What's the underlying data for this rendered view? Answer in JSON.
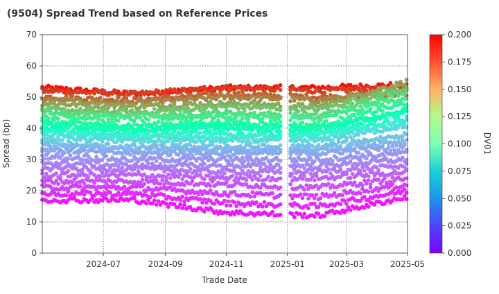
{
  "chart_data": {
    "type": "scatter",
    "title": "(9504)   Spread Trend based on Reference Prices",
    "xlabel": "Trade Date",
    "ylabel": "Spread (bp)",
    "colorbar_label": "DV01",
    "xlim": [
      "2024-05-01",
      "2025-05-01"
    ],
    "ylim": [
      0,
      70
    ],
    "grid": true,
    "x_ticks": [
      "2024-07",
      "2024-09",
      "2024-11",
      "2025-01",
      "2025-03",
      "2025-05"
    ],
    "y_ticks": [
      0,
      10,
      20,
      30,
      40,
      50,
      60,
      70
    ],
    "colorbar": {
      "colormap": "rainbow",
      "min": 0.0,
      "max": 0.2,
      "ticks": [
        "0.000",
        "0.025",
        "0.050",
        "0.075",
        "0.100",
        "0.125",
        "0.150",
        "0.175",
        "0.200"
      ]
    },
    "gap": [
      "2024-12-27",
      "2025-01-03"
    ],
    "series": [
      {
        "dv01": 0.195,
        "values": [
          53,
          51,
          53,
          53,
          54
        ]
      },
      {
        "dv01": 0.185,
        "values": [
          52,
          51,
          53,
          52,
          53
        ]
      },
      {
        "dv01": 0.175,
        "values": [
          50,
          49,
          51,
          50,
          51
        ]
      },
      {
        "dv01": 0.165,
        "values": [
          49,
          48,
          50,
          49,
          52
        ]
      },
      {
        "dv01": 0.155,
        "values": [
          48,
          47,
          48,
          47,
          55
        ]
      },
      {
        "dv01": 0.145,
        "values": [
          46,
          45,
          47,
          46,
          53
        ]
      },
      {
        "dv01": 0.135,
        "values": [
          45,
          44,
          45,
          44,
          52
        ]
      },
      {
        "dv01": 0.125,
        "values": [
          44,
          43,
          44,
          43,
          50
        ]
      },
      {
        "dv01": 0.115,
        "values": [
          42,
          41,
          42,
          41,
          48
        ]
      },
      {
        "dv01": 0.105,
        "values": [
          41,
          40,
          41,
          40,
          46
        ]
      },
      {
        "dv01": 0.095,
        "values": [
          40,
          39,
          40,
          39,
          45
        ]
      },
      {
        "dv01": 0.085,
        "values": [
          39,
          38,
          38,
          38,
          43
        ]
      },
      {
        "dv01": 0.075,
        "values": [
          38,
          37,
          37,
          37,
          42
        ]
      },
      {
        "dv01": 0.065,
        "values": [
          37,
          36,
          36,
          36,
          41
        ]
      },
      {
        "dv01": 0.055,
        "values": [
          35,
          34,
          34,
          34,
          38
        ]
      },
      {
        "dv01": 0.05,
        "values": [
          34,
          33,
          33,
          33,
          36
        ]
      },
      {
        "dv01": 0.045,
        "values": [
          33,
          32,
          32,
          32,
          34
        ]
      },
      {
        "dv01": 0.04,
        "values": [
          31,
          30,
          30,
          30,
          32
        ]
      },
      {
        "dv01": 0.035,
        "values": [
          29,
          28,
          28,
          28,
          30
        ]
      },
      {
        "dv01": 0.03,
        "values": [
          27,
          27,
          26,
          26,
          28
        ]
      },
      {
        "dv01": 0.025,
        "values": [
          25,
          25,
          24,
          24,
          26
        ]
      },
      {
        "dv01": 0.02,
        "values": [
          23,
          23,
          22,
          21,
          24
        ]
      },
      {
        "dv01": 0.015,
        "values": [
          21,
          21,
          19,
          18,
          22
        ]
      },
      {
        "dv01": 0.01,
        "values": [
          19,
          19,
          16,
          15,
          20
        ]
      },
      {
        "dv01": 0.005,
        "values": [
          17,
          17,
          13,
          12,
          18
        ]
      }
    ],
    "anchor_dates": [
      "2024-05-01",
      "2024-08-01",
      "2024-11-01",
      "2025-02-01",
      "2025-05-01"
    ]
  }
}
